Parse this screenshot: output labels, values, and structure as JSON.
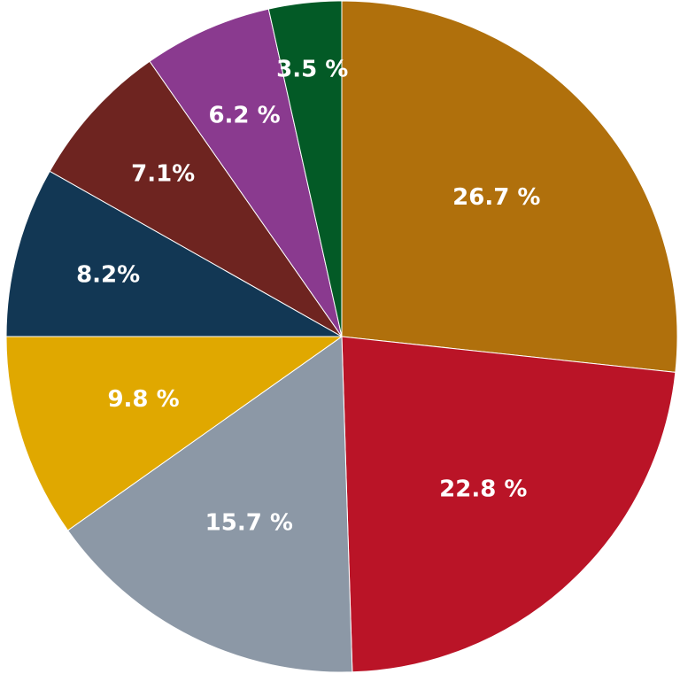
{
  "chart_data": {
    "type": "pie",
    "start_angle_deg": 0,
    "direction": "clockwise",
    "slices": [
      {
        "value": 26.7,
        "label": "26.7 %",
        "color": "#B0700C"
      },
      {
        "value": 22.8,
        "label": "22.8 %",
        "color": "#BA1427"
      },
      {
        "value": 15.7,
        "label": "15.7 %",
        "color": "#8C98A6"
      },
      {
        "value": 9.8,
        "label": "9.8 %",
        "color": "#E0A800"
      },
      {
        "value": 8.2,
        "label": "8.2%",
        "color": "#123754"
      },
      {
        "value": 7.1,
        "label": "7.1%",
        "color": "#6E2420"
      },
      {
        "value": 6.2,
        "label": "6.2 %",
        "color": "#8A3A8F"
      },
      {
        "value": 3.5,
        "label": "3.5 %",
        "color": "#035A26"
      }
    ]
  }
}
